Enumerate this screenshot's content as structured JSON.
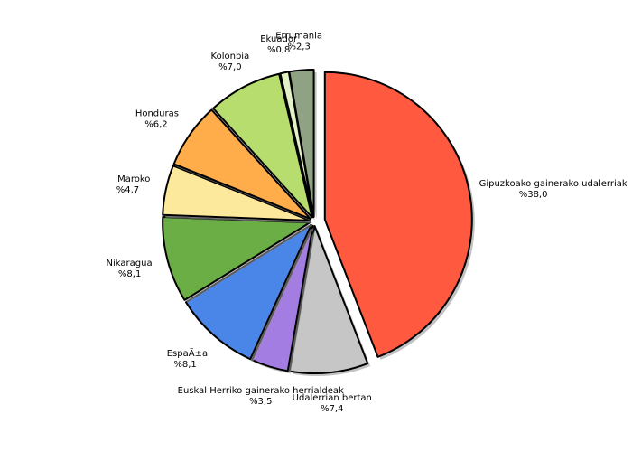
{
  "chart_data": {
    "type": "pie",
    "categories": [
      "Gipuzkoako gainerako udalerriak",
      "Udalerrian bertan",
      "Euskal Herriko gainerako herrialdeak",
      "EspaÃ±a",
      "Nikaragua",
      "Maroko",
      "Honduras",
      "Kolonbia",
      "Ekuador",
      "Errumania"
    ],
    "values": [
      38.0,
      7.4,
      3.5,
      8.1,
      8.1,
      4.7,
      6.2,
      7.0,
      0.8,
      2.3
    ],
    "value_labels": [
      "%38,0",
      "%7,4",
      "%3,5",
      "%8,1",
      "%8,1",
      "%4,7",
      "%6,2",
      "%7,0",
      "%0,8",
      "%2,3"
    ],
    "colors": [
      "#ff5a40",
      "#c6c6c6",
      "#a47de3",
      "#4a86e8",
      "#6cae46",
      "#fde99c",
      "#ffad4a",
      "#b6dd6e",
      "#e3f2c6",
      "#8fa283"
    ]
  }
}
